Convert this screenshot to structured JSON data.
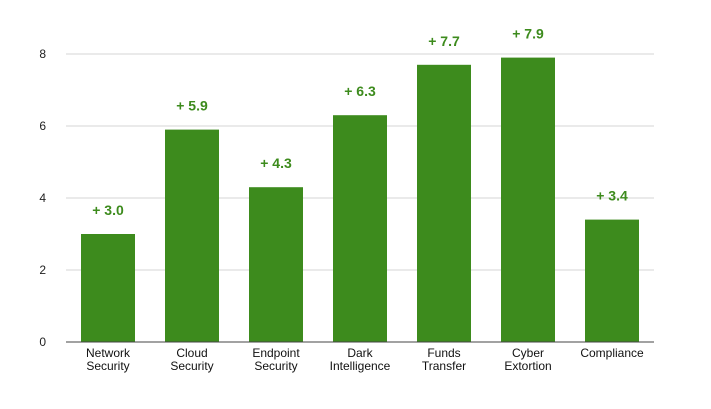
{
  "chart_data": {
    "type": "bar",
    "categories": [
      [
        "Network",
        "Security"
      ],
      [
        "Cloud",
        "Security"
      ],
      [
        "Endpoint",
        "Security"
      ],
      [
        "Dark",
        "Intelligence"
      ],
      [
        "Funds",
        "Transfer"
      ],
      [
        "Cyber",
        "Extortion"
      ],
      [
        "Compliance"
      ]
    ],
    "values": [
      3.0,
      5.9,
      4.3,
      6.3,
      7.7,
      7.9,
      3.4
    ],
    "data_labels": [
      "+ 3.0",
      "+ 5.9",
      "+ 4.3",
      "+ 6.3",
      "+ 7.7",
      "+ 7.9",
      "+ 3.4"
    ],
    "title": "",
    "xlabel": "",
    "ylabel": "",
    "ylim": [
      0,
      8
    ],
    "yticks": [
      "0",
      "2",
      "4",
      "6",
      "8"
    ],
    "grid": true,
    "legend": "none",
    "colors": {
      "bar": "#3d8b1d",
      "label": "#3d8b1d",
      "grid": "#d6d6d6",
      "axis": "#444444"
    }
  }
}
